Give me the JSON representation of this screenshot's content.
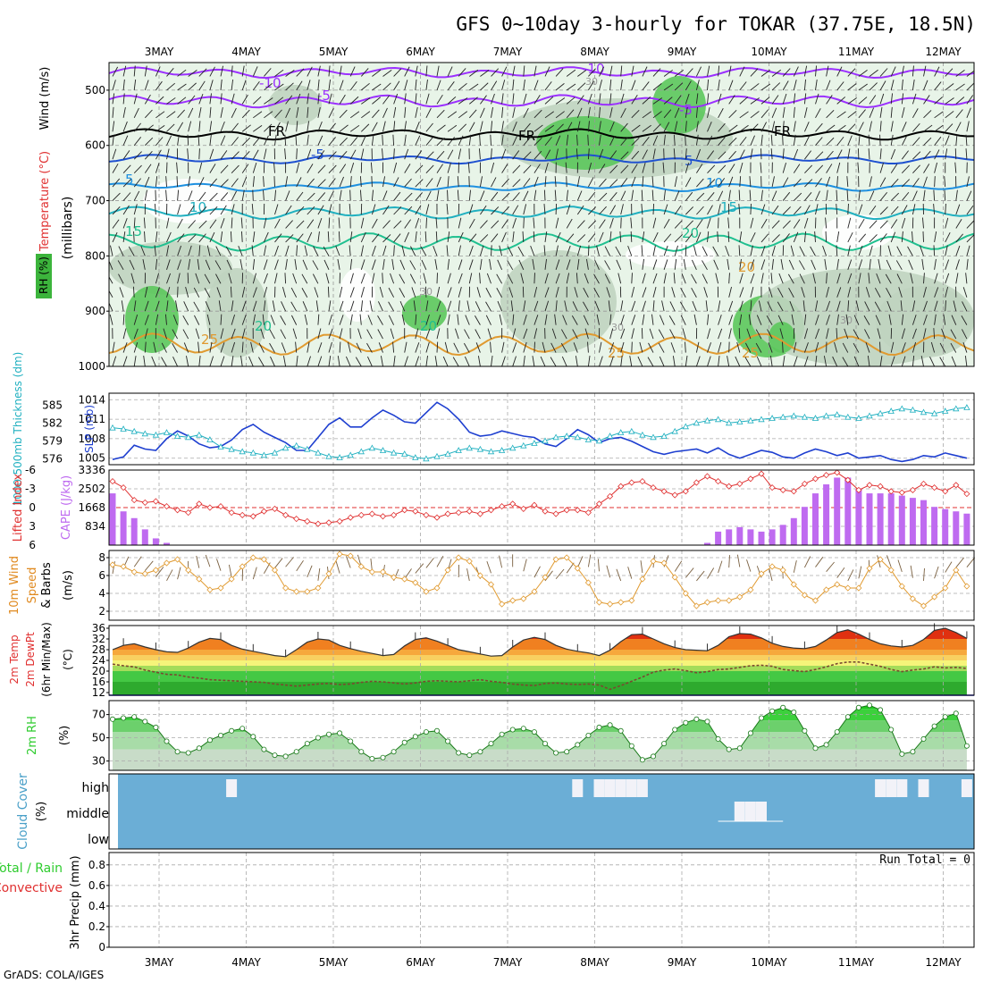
{
  "title": "GFS 0~10day 3-hourly for TOKAR (37.75E, 18.5N)",
  "credit": "GrADS: COLA/IGES",
  "colors": {
    "purple": "#9b30ff",
    "slp": "#1e3fd0",
    "thick": "#20b0c0",
    "li": "#e03030",
    "cape": "#bf6bf0",
    "wind": "#e09a30",
    "rh": "#2ecc2e",
    "cloudbg": "#6baed6",
    "cloud": "#f2f2f8",
    "moist1": "#e8f4e8",
    "moist2": "#c0d4c0",
    "moist3": "#5cc85c"
  },
  "chart_data": [
    {
      "panel": "upper-air",
      "type": "contour",
      "x_ticks": [
        "3MAY",
        "4MAY",
        "5MAY",
        "6MAY",
        "7MAY",
        "8MAY",
        "9MAY",
        "10MAY",
        "11MAY",
        "12MAY"
      ],
      "ylabel_main": "Wind (m/s)",
      "ylabel_temp": "Temperature (°C)",
      "ylabel_rh": "RH (%)",
      "ylabel_units": "(millibars)",
      "y_ticks": [
        "500",
        "600",
        "700",
        "800",
        "900",
        "1000"
      ],
      "temp_labels": [
        "-10",
        "-10",
        "-5",
        "-5",
        "-5",
        "FR",
        "FR",
        "FR",
        "5",
        "5",
        "10",
        "10",
        "15",
        "15",
        "20",
        "20",
        "20",
        "20",
        "25",
        "25",
        "25"
      ],
      "rh_labels": [
        "30",
        "30",
        "30",
        "30"
      ]
    },
    {
      "panel": "slp-thickness",
      "type": "line",
      "ylabel_slp": "SLP (mb)",
      "ylabel_thick": "1000-500mb Thickness (dm)",
      "slp_ticks": [
        "1014",
        "1011",
        "1008",
        "1005"
      ],
      "thick_ticks": [
        "585",
        "582",
        "579",
        "576"
      ],
      "slp": [
        1004.8,
        1005.2,
        1007.0,
        1006.4,
        1006.2,
        1008.0,
        1009.2,
        1008.4,
        1007.2,
        1006.6,
        1006.8,
        1007.8,
        1009.4,
        1010.2,
        1009.0,
        1008.2,
        1007.4,
        1006.2,
        1006.2,
        1008.2,
        1010.2,
        1011.2,
        1009.8,
        1009.8,
        1011.2,
        1012.4,
        1011.6,
        1010.6,
        1010.4,
        1012.0,
        1013.6,
        1012.6,
        1011.0,
        1009.0,
        1008.4,
        1008.6,
        1009.2,
        1008.8,
        1008.4,
        1008.2,
        1007.2,
        1006.8,
        1008.0,
        1009.4,
        1008.6,
        1007.4,
        1008.0,
        1008.2,
        1007.6,
        1006.8,
        1006.0,
        1005.6,
        1006.0,
        1006.2,
        1006.4,
        1005.8,
        1006.6,
        1005.6,
        1005.0,
        1005.6,
        1006.2,
        1005.9,
        1005.2,
        1005.0,
        1005.8,
        1006.4,
        1006.0,
        1005.4,
        1005.8,
        1005.0,
        1005.2,
        1005.4,
        1004.8,
        1004.5,
        1004.8,
        1005.4,
        1005.2,
        1005.8,
        1005.4,
        1005.0
      ],
      "thickness": [
        581.2,
        581.0,
        580.6,
        580.2,
        580.0,
        580.4,
        579.8,
        579.6,
        580.0,
        579.2,
        578.0,
        577.6,
        577.2,
        577.0,
        576.6,
        577.0,
        577.8,
        578.2,
        577.6,
        577.0,
        576.4,
        576.2,
        576.6,
        577.2,
        577.8,
        577.4,
        577.0,
        576.8,
        576.2,
        576.0,
        576.4,
        576.8,
        577.4,
        577.8,
        577.6,
        577.2,
        577.4,
        577.8,
        578.2,
        578.6,
        579.0,
        579.6,
        579.8,
        579.6,
        579.2,
        579.0,
        579.8,
        580.4,
        580.6,
        580.0,
        579.6,
        579.8,
        580.6,
        581.4,
        582.0,
        582.4,
        582.6,
        582.0,
        582.2,
        582.4,
        582.6,
        582.8,
        583.0,
        583.2,
        583.0,
        582.8,
        583.2,
        583.4,
        583.0,
        582.8,
        583.2,
        583.6,
        584.0,
        584.4,
        584.2,
        583.8,
        583.6,
        584.0,
        584.4,
        584.6
      ]
    },
    {
      "panel": "stability",
      "type": "bar-line",
      "ylabel_li": "Lifted Index",
      "ylabel_cape": "CAPE (J/kg)",
      "li_ticks": [
        "-6",
        "-3",
        "0",
        "3",
        "6"
      ],
      "cape_ticks": [
        "3336",
        "2502",
        "1668",
        "834"
      ],
      "lifted_index": [
        -4.2,
        -3.2,
        -1.2,
        -0.8,
        -1.0,
        -0.2,
        0.4,
        0.8,
        -0.6,
        0.0,
        -0.2,
        0.8,
        1.2,
        1.4,
        0.6,
        0.2,
        1.2,
        1.8,
        2.2,
        2.6,
        2.4,
        2.2,
        1.6,
        1.2,
        1.0,
        1.4,
        1.2,
        0.4,
        0.6,
        1.2,
        1.6,
        1.0,
        0.8,
        0.6,
        1.0,
        0.4,
        -0.2,
        -0.6,
        0.2,
        -0.4,
        0.6,
        1.0,
        0.4,
        0.4,
        0.8,
        -0.6,
        -1.8,
        -3.4,
        -4.0,
        -4.2,
        -3.2,
        -2.6,
        -2.0,
        -2.6,
        -4.0,
        -5.0,
        -4.2,
        -3.4,
        -3.8,
        -4.6,
        -5.4,
        -3.2,
        -2.8,
        -2.6,
        -3.8,
        -4.6,
        -5.2,
        -5.6,
        -4.4,
        -2.8,
        -3.6,
        -3.4,
        -2.6,
        -2.4,
        -2.8,
        -3.8,
        -3.2,
        -2.6,
        -3.6,
        -2.2
      ],
      "cape": [
        2300,
        1500,
        1200,
        700,
        300,
        100,
        0,
        0,
        0,
        0,
        0,
        0,
        0,
        0,
        0,
        0,
        0,
        0,
        0,
        0,
        0,
        0,
        0,
        0,
        0,
        0,
        0,
        0,
        0,
        0,
        0,
        0,
        0,
        0,
        0,
        0,
        0,
        0,
        0,
        0,
        0,
        0,
        0,
        0,
        0,
        0,
        0,
        0,
        0,
        0,
        0,
        0,
        0,
        0,
        0,
        100,
        600,
        700,
        800,
        700,
        600,
        700,
        900,
        1200,
        1700,
        2300,
        2700,
        3000,
        3000,
        2500,
        2300,
        2300,
        2300,
        2200,
        2100,
        2000,
        1700,
        1600,
        1500,
        1400
      ]
    },
    {
      "panel": "surface-wind",
      "type": "line",
      "ylabel": "10m Wind Speed & Barbs (m/s)",
      "y_ticks": [
        "8",
        "6",
        "4",
        "2"
      ],
      "wind_speed": [
        7.2,
        7.0,
        6.4,
        6.2,
        6.6,
        7.4,
        7.8,
        6.6,
        5.6,
        4.4,
        4.6,
        5.6,
        7.0,
        8.0,
        7.8,
        6.6,
        4.6,
        4.2,
        4.2,
        4.6,
        6.2,
        8.4,
        8.2,
        7.0,
        6.4,
        6.4,
        5.8,
        5.6,
        5.2,
        4.2,
        4.6,
        6.6,
        8.0,
        7.6,
        6.0,
        5.0,
        2.8,
        3.2,
        3.4,
        4.2,
        5.8,
        7.8,
        8.0,
        6.8,
        5.2,
        3.0,
        2.8,
        3.0,
        3.2,
        5.6,
        7.6,
        7.4,
        5.8,
        4.0,
        2.6,
        3.0,
        3.2,
        3.2,
        3.6,
        4.4,
        6.2,
        7.0,
        6.6,
        5.0,
        3.8,
        3.2,
        4.4,
        5.0,
        4.6,
        4.6,
        6.8,
        7.8,
        6.6,
        4.8,
        3.4,
        2.6,
        3.6,
        4.6,
        6.6,
        4.8
      ]
    },
    {
      "panel": "temperature",
      "type": "area",
      "ylabel": "2m Temp / 2m DewPt (6hr Min/Max) (°C)",
      "y_ticks": [
        "36",
        "32",
        "28",
        "24",
        "20",
        "16",
        "12"
      ],
      "temp": [
        28.0,
        29.6,
        30.2,
        29.0,
        28.0,
        27.2,
        27.0,
        28.6,
        30.8,
        32.2,
        31.8,
        29.6,
        28.2,
        27.4,
        26.6,
        25.8,
        25.4,
        28.0,
        30.8,
        32.0,
        31.6,
        29.6,
        28.4,
        27.4,
        26.6,
        25.8,
        26.2,
        29.4,
        31.8,
        32.4,
        31.2,
        29.6,
        28.0,
        27.2,
        26.4,
        25.6,
        25.8,
        29.0,
        31.6,
        32.6,
        31.8,
        29.6,
        28.2,
        27.4,
        26.8,
        25.8,
        27.8,
        31.0,
        33.6,
        33.8,
        32.0,
        30.2,
        28.8,
        28.0,
        27.8,
        27.6,
        29.6,
        32.8,
        34.0,
        33.8,
        32.4,
        30.4,
        29.2,
        28.6,
        28.4,
        29.2,
        31.6,
        34.4,
        35.4,
        33.8,
        31.8,
        30.2,
        29.4,
        29.0,
        29.6,
        31.8,
        35.2,
        36.0,
        34.4,
        32.2
      ],
      "dewpoint": [
        22.6,
        22.0,
        21.6,
        20.4,
        19.6,
        18.8,
        18.6,
        17.8,
        17.4,
        16.8,
        16.6,
        16.4,
        16.2,
        16.0,
        15.8,
        15.2,
        14.8,
        14.4,
        14.8,
        15.2,
        15.4,
        15.0,
        15.2,
        15.8,
        16.2,
        16.0,
        15.6,
        15.2,
        15.6,
        16.2,
        16.4,
        16.2,
        16.0,
        16.4,
        16.8,
        16.2,
        15.8,
        15.2,
        14.8,
        14.6,
        15.4,
        15.6,
        15.2,
        15.0,
        15.2,
        14.8,
        13.2,
        14.6,
        16.2,
        17.8,
        19.6,
        20.4,
        20.8,
        20.2,
        19.4,
        19.8,
        20.6,
        20.8,
        21.4,
        22.0,
        22.2,
        21.8,
        20.6,
        20.2,
        19.8,
        20.6,
        21.6,
        22.8,
        23.4,
        23.4,
        22.6,
        21.8,
        20.6,
        19.8,
        20.4,
        20.8,
        21.6,
        21.2,
        21.4,
        21.0
      ]
    },
    {
      "panel": "humidity",
      "type": "area",
      "ylabel": "2m RH (%)",
      "y_ticks": [
        "70",
        "50",
        "30"
      ],
      "rh": [
        66,
        67,
        68,
        64,
        59,
        47,
        38,
        37,
        41,
        48,
        52,
        56,
        58,
        51,
        40,
        35,
        34,
        38,
        45,
        50,
        53,
        54,
        47,
        38,
        32,
        33,
        38,
        46,
        51,
        55,
        56,
        47,
        37,
        35,
        38,
        45,
        53,
        57,
        58,
        55,
        45,
        37,
        38,
        44,
        52,
        59,
        61,
        56,
        43,
        31,
        34,
        45,
        57,
        63,
        66,
        64,
        49,
        40,
        41,
        54,
        67,
        73,
        76,
        72,
        56,
        41,
        44,
        55,
        68,
        76,
        78,
        74,
        57,
        36,
        38,
        49,
        60,
        68,
        71,
        43
      ]
    },
    {
      "panel": "cloud-cover",
      "type": "bar",
      "ylabel": "Cloud Cover (%)",
      "levels": [
        "high",
        "middle",
        "low"
      ],
      "high": [
        0,
        0,
        0,
        0,
        0,
        0,
        0,
        0,
        0,
        0,
        0,
        1,
        0,
        0,
        0,
        0,
        0,
        0,
        0,
        0,
        0,
        0,
        0,
        0,
        0,
        0,
        0,
        0,
        0,
        0,
        0,
        0,
        0,
        0,
        0,
        0,
        0,
        0,
        0,
        0,
        0,
        0,
        0,
        1,
        0,
        1,
        1,
        1,
        1,
        1,
        0,
        0,
        0,
        0,
        0,
        0,
        0,
        0,
        0,
        0,
        0,
        0,
        0,
        0,
        0,
        0,
        0,
        0,
        0,
        0,
        0,
        1,
        1,
        1,
        0,
        1,
        0,
        0,
        0,
        1
      ],
      "middle": [
        0,
        0,
        0,
        0,
        0,
        0,
        0,
        0,
        0,
        0,
        0,
        0,
        0,
        0,
        0,
        0,
        0,
        0,
        0,
        0,
        0,
        0,
        0,
        0,
        0,
        0,
        0,
        0,
        0,
        0,
        0,
        0,
        0,
        0,
        0,
        0,
        0,
        0,
        0,
        0,
        0,
        0,
        0,
        0,
        0,
        0,
        0,
        0,
        0,
        0,
        0,
        0,
        0,
        0,
        0,
        0,
        0,
        0,
        0,
        0,
        0,
        0,
        0,
        0,
        0,
        0,
        0,
        0,
        0,
        0,
        0,
        0,
        0,
        0,
        0,
        0,
        0,
        0,
        0,
        0
      ]
    },
    {
      "panel": "precip",
      "type": "bar",
      "ylabel": "3hr Precip (mm)",
      "ylabel_total": "Total / Rain",
      "ylabel_conv": "Convective",
      "run_total": "Run Total = 0",
      "y_ticks": [
        "0.8",
        "0.6",
        "0.4",
        "0.2",
        "0"
      ]
    }
  ]
}
